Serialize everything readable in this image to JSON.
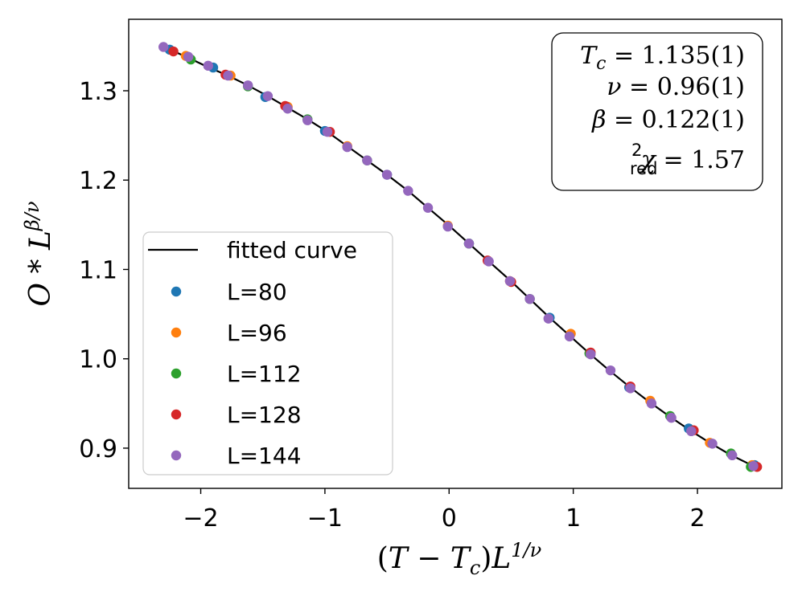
{
  "chart_data": {
    "type": "scatter",
    "xlabel": "(T − T_c)L^{1/ν}",
    "ylabel": "O * L^{β/ν}",
    "xlim": [
      -2.58,
      2.68
    ],
    "ylim": [
      0.855,
      1.38
    ],
    "xticks": [
      -2,
      -1,
      0,
      1,
      2
    ],
    "yticks": [
      0.9,
      1.0,
      1.1,
      1.2,
      1.3
    ],
    "xtick_labels": [
      "−2",
      "−1",
      "0",
      "1",
      "2"
    ],
    "ytick_labels": [
      "0.9",
      "1.0",
      "1.1",
      "1.2",
      "1.3"
    ],
    "grid": false,
    "legend_position": "lower-left",
    "fitted_curve": {
      "name": "fitted curve",
      "color": "#000000",
      "x": [
        -2.28,
        -2.1,
        -1.95,
        -1.78,
        -1.62,
        -1.46,
        -1.3,
        -1.14,
        -0.98,
        -0.82,
        -0.66,
        -0.5,
        -0.33,
        -0.17,
        0.0,
        0.16,
        0.32,
        0.49,
        0.65,
        0.81,
        0.97,
        1.13,
        1.29,
        1.45,
        1.61,
        1.77,
        1.94,
        2.1,
        2.26,
        2.45
      ],
      "y": [
        1.348,
        1.337,
        1.327,
        1.317,
        1.306,
        1.294,
        1.281,
        1.268,
        1.254,
        1.238,
        1.222,
        1.206,
        1.188,
        1.169,
        1.149,
        1.129,
        1.109,
        1.088,
        1.067,
        1.046,
        1.026,
        1.006,
        0.987,
        0.969,
        0.952,
        0.936,
        0.92,
        0.906,
        0.893,
        0.88
      ]
    },
    "series": [
      {
        "name": "L=80",
        "color": "#1f77b4",
        "x": [
          -2.25,
          -1.9,
          -1.48,
          -1.0,
          -0.5,
          0.16,
          0.81,
          1.45,
          1.93,
          2.46
        ],
        "y": [
          1.346,
          1.326,
          1.293,
          1.255,
          1.206,
          1.129,
          1.046,
          0.968,
          0.922,
          0.881
        ]
      },
      {
        "name": "L=96",
        "color": "#ff7f0e",
        "x": [
          -2.12,
          -1.76,
          -1.3,
          -0.82,
          -0.01,
          0.49,
          0.98,
          1.62,
          2.1,
          2.44
        ],
        "y": [
          1.339,
          1.317,
          1.282,
          1.238,
          1.149,
          1.087,
          1.028,
          0.953,
          0.906,
          0.881
        ]
      },
      {
        "name": "L=112",
        "color": "#2ca02c",
        "x": [
          -2.08,
          -1.62,
          -1.14,
          -0.66,
          0.16,
          0.65,
          1.13,
          1.78,
          2.27,
          2.43
        ],
        "y": [
          1.335,
          1.305,
          1.268,
          1.222,
          1.129,
          1.067,
          1.006,
          0.936,
          0.894,
          0.879
        ]
      },
      {
        "name": "L=128",
        "color": "#d62728",
        "x": [
          -2.22,
          -1.8,
          -1.32,
          -0.96,
          0.31,
          0.5,
          1.14,
          1.46,
          1.97,
          2.48
        ],
        "y": [
          1.344,
          1.318,
          1.283,
          1.254,
          1.11,
          1.086,
          1.007,
          0.969,
          0.92,
          0.879
        ]
      },
      {
        "name": "L=144",
        "color": "#9467bd",
        "x": [
          -2.3,
          -2.1,
          -1.94,
          -1.78,
          -1.62,
          -1.46,
          -1.3,
          -1.14,
          -0.98,
          -0.82,
          -0.66,
          -0.5,
          -0.33,
          -0.17,
          -0.01,
          0.16,
          0.32,
          0.49,
          0.65,
          0.8,
          0.97,
          1.14,
          1.3,
          1.46,
          1.63,
          1.79,
          1.95,
          2.12,
          2.28,
          2.45
        ],
        "y": [
          1.349,
          1.338,
          1.328,
          1.317,
          1.306,
          1.294,
          1.28,
          1.267,
          1.254,
          1.237,
          1.222,
          1.206,
          1.188,
          1.169,
          1.148,
          1.129,
          1.109,
          1.087,
          1.067,
          1.045,
          1.025,
          1.005,
          0.987,
          0.967,
          0.95,
          0.934,
          0.919,
          0.905,
          0.892,
          0.88
        ]
      }
    ],
    "annotation": {
      "Tc_label": "T",
      "Tc_sub": "c",
      "Tc_value": " = 1.135(1)",
      "nu_label": "ν",
      "nu_value": " = 0.96(1)",
      "beta_label": "β",
      "beta_value": " = 0.122(1)",
      "chi_label": "χ",
      "chi_sup": "2",
      "chi_sub": "red",
      "chi_value": " = 1.57"
    }
  }
}
